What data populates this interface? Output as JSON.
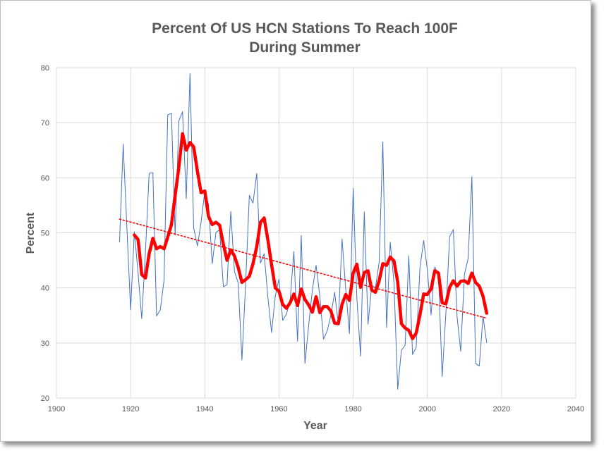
{
  "chart_data": {
    "type": "line",
    "title_lines": [
      "Percent Of US HCN Stations To Reach 100F",
      "During Summer"
    ],
    "xlabel": "Year",
    "ylabel": "Percent",
    "xlim": [
      1900,
      2040
    ],
    "ylim": [
      20,
      80
    ],
    "xticks": [
      1900,
      1920,
      1940,
      1960,
      1980,
      2000,
      2020,
      2040
    ],
    "yticks": [
      20,
      30,
      40,
      50,
      60,
      70,
      80
    ],
    "grid": true,
    "legend": "none",
    "series": [
      {
        "style": "annual",
        "color": "#4472c4",
        "x": [
          1917,
          1918,
          1919,
          1920,
          1921,
          1922,
          1923,
          1924,
          1925,
          1926,
          1927,
          1928,
          1929,
          1930,
          1931,
          1932,
          1933,
          1934,
          1935,
          1936,
          1937,
          1938,
          1939,
          1940,
          1941,
          1942,
          1943,
          1944,
          1945,
          1946,
          1947,
          1948,
          1949,
          1950,
          1951,
          1952,
          1953,
          1954,
          1955,
          1956,
          1957,
          1958,
          1959,
          1960,
          1961,
          1962,
          1963,
          1964,
          1965,
          1966,
          1967,
          1968,
          1969,
          1970,
          1971,
          1972,
          1973,
          1974,
          1975,
          1976,
          1977,
          1978,
          1979,
          1980,
          1981,
          1982,
          1983,
          1984,
          1985,
          1986,
          1987,
          1988,
          1989,
          1990,
          1991,
          1992,
          1993,
          1994,
          1995,
          1996,
          1997,
          1998,
          1999,
          2000,
          2001,
          2002,
          2003,
          2004,
          2005,
          2006,
          2007,
          2008,
          2009,
          2010,
          2011,
          2012,
          2013,
          2014,
          2015,
          2016
        ],
        "values": [
          48.3,
          66.1,
          50.8,
          36.0,
          50.2,
          42.7,
          34.4,
          46.7,
          60.8,
          60.9,
          34.9,
          36.0,
          41.4,
          71.4,
          71.7,
          49.6,
          70.3,
          72.0,
          56.2,
          78.9,
          50.9,
          47.6,
          51.9,
          57.6,
          55.2,
          44.4,
          50.1,
          50.5,
          40.2,
          40.6,
          53.9,
          43.0,
          40.9,
          26.9,
          40.7,
          56.8,
          55.4,
          60.8,
          44.5,
          46.2,
          38.3,
          31.9,
          38.5,
          41.6,
          34.1,
          35.2,
          37.7,
          46.6,
          30.3,
          49.5,
          26.3,
          33.2,
          39.6,
          44.1,
          38.5,
          30.7,
          32.2,
          35.0,
          39.2,
          33.5,
          48.9,
          39.6,
          31.7,
          58.1,
          38.1,
          27.6,
          53.8,
          33.4,
          40.5,
          40.0,
          44.7,
          66.5,
          32.8,
          48.3,
          41.0,
          21.6,
          28.7,
          29.6,
          45.8,
          27.9,
          29.2,
          43.7,
          48.6,
          43.3,
          35.1,
          43.8,
          42.3,
          23.9,
          35.5,
          49.3,
          50.6,
          34.8,
          28.5,
          42.5,
          45.3,
          60.2,
          26.3,
          25.8,
          34.8,
          30.1
        ]
      },
      {
        "style": "smoothed",
        "color": "#ff0000",
        "x": [
          1921,
          1922,
          1923,
          1924,
          1925,
          1926,
          1927,
          1928,
          1929,
          1930,
          1931,
          1932,
          1933,
          1934,
          1935,
          1936,
          1937,
          1938,
          1939,
          1940,
          1941,
          1942,
          1943,
          1944,
          1945,
          1946,
          1947,
          1948,
          1949,
          1950,
          1951,
          1952,
          1953,
          1954,
          1955,
          1956,
          1957,
          1958,
          1959,
          1960,
          1961,
          1962,
          1963,
          1964,
          1965,
          1966,
          1967,
          1968,
          1969,
          1970,
          1971,
          1972,
          1973,
          1974,
          1975,
          1976,
          1977,
          1978,
          1979,
          1980,
          1981,
          1982,
          1983,
          1984,
          1985,
          1986,
          1987,
          1988,
          1989,
          1990,
          1991,
          1992,
          1993,
          1994,
          1995,
          1996,
          1997,
          1998,
          1999,
          2000,
          2001,
          2002,
          2003,
          2004,
          2005,
          2006,
          2007,
          2008,
          2009,
          2010,
          2011,
          2012,
          2013,
          2014,
          2015,
          2016
        ],
        "values": [
          49.6,
          48.8,
          42.4,
          41.8,
          46.2,
          49.0,
          47.1,
          47.5,
          47.1,
          49.2,
          51.5,
          56.8,
          61.9,
          68.0,
          65.0,
          66.4,
          65.6,
          61.2,
          57.3,
          57.6,
          53.0,
          51.5,
          51.9,
          51.4,
          47.9,
          45.0,
          46.9,
          45.8,
          43.7,
          41.0,
          41.5,
          42.1,
          44.4,
          47.5,
          51.9,
          52.7,
          48.7,
          44.2,
          40.0,
          39.4,
          37.0,
          36.3,
          37.3,
          38.9,
          36.8,
          39.8,
          37.9,
          36.9,
          35.6,
          38.4,
          35.5,
          36.6,
          36.6,
          35.8,
          33.6,
          33.5,
          37.0,
          38.8,
          37.7,
          42.7,
          44.3,
          40.1,
          42.8,
          43.1,
          39.6,
          39.2,
          41.3,
          44.4,
          44.1,
          45.6,
          44.9,
          41.1,
          33.5,
          32.7,
          32.3,
          30.8,
          31.8,
          35.1,
          38.9,
          38.8,
          39.8,
          43.1,
          42.7,
          37.3,
          37.1,
          40.1,
          41.3,
          40.3,
          41.2,
          41.3,
          40.8,
          42.7,
          41.0,
          40.3,
          38.5,
          35.4
        ]
      },
      {
        "style": "trend",
        "color": "#ff0000",
        "x": [
          1917,
          2016
        ],
        "values": [
          52.5,
          34.5
        ]
      }
    ]
  }
}
